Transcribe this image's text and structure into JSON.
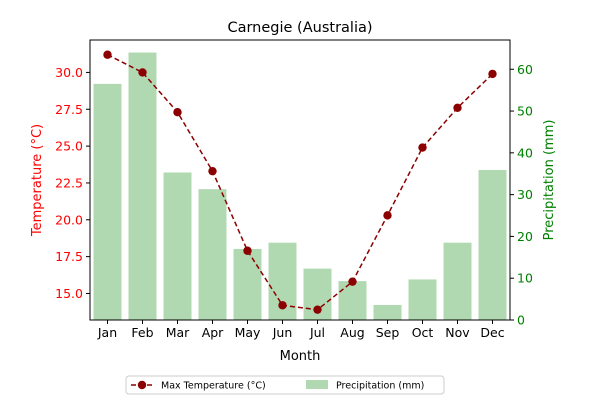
{
  "chart_data": {
    "type": "bar+line",
    "title": "Carnegie (Australia)",
    "xlabel": "Month",
    "categories": [
      "Jan",
      "Feb",
      "Mar",
      "Apr",
      "May",
      "Jun",
      "Jul",
      "Aug",
      "Sep",
      "Oct",
      "Nov",
      "Dec"
    ],
    "left_axis": {
      "label": "Temperature (°C)",
      "color": "#ff0000",
      "ylim": [
        13.2,
        32.2
      ],
      "ticks": [
        "15.0",
        "17.5",
        "20.0",
        "22.5",
        "25.0",
        "27.5",
        "30.0"
      ]
    },
    "right_axis": {
      "label": "Precipitation (mm)",
      "color": "#008000",
      "ylim": [
        0,
        67
      ],
      "ticks": [
        "0",
        "10",
        "20",
        "30",
        "40",
        "50",
        "60"
      ]
    },
    "series": [
      {
        "name": "Max Temperature (°C)",
        "type": "line",
        "axis": "left",
        "color": "#8b0000",
        "line_style": "dashed",
        "marker": "circle",
        "values": [
          31.2,
          30.0,
          27.3,
          23.3,
          17.9,
          14.2,
          13.9,
          15.8,
          20.3,
          24.9,
          27.6,
          29.9
        ]
      },
      {
        "name": "Precipitation (mm)",
        "type": "bar",
        "axis": "right",
        "color": "#b0d9b1",
        "values": [
          56.5,
          64.0,
          35.3,
          31.3,
          17.0,
          18.5,
          12.3,
          9.3,
          3.6,
          9.7,
          18.5,
          35.9
        ]
      }
    ],
    "legend": {
      "position": "bottom-center",
      "columns": 2
    },
    "grid": false
  }
}
